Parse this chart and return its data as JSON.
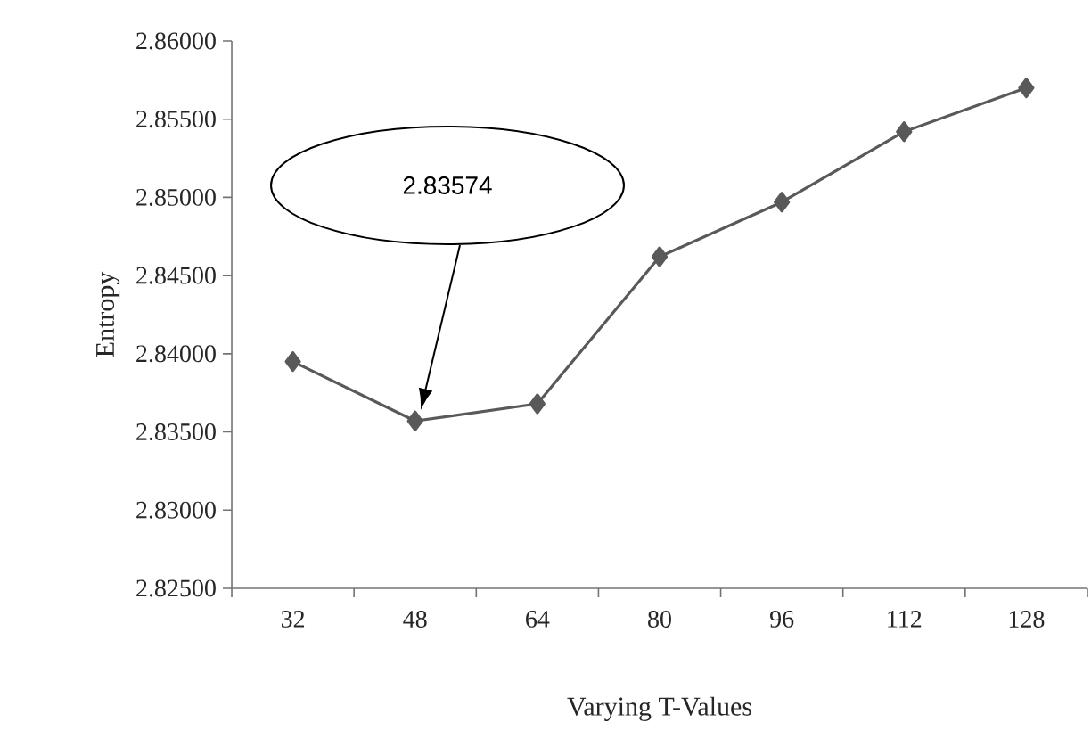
{
  "chart_data": {
    "type": "line",
    "xlabel": "Varying T-Values",
    "ylabel": "Entropy",
    "categories": [
      "32",
      "48",
      "64",
      "80",
      "96",
      "112",
      "128"
    ],
    "series": [
      {
        "color": "#595959",
        "values": [
          2.8395,
          2.8357,
          2.8368,
          2.8462,
          2.8497,
          2.8542,
          2.857
        ]
      }
    ],
    "ylim": [
      2.825,
      2.86
    ],
    "yticks": [
      {
        "value": 2.825,
        "label": "2.82500"
      },
      {
        "value": 2.83,
        "label": "2.83000"
      },
      {
        "value": 2.835,
        "label": "2.83500"
      },
      {
        "value": 2.84,
        "label": "2.84000"
      },
      {
        "value": 2.845,
        "label": "2.84500"
      },
      {
        "value": 2.85,
        "label": "2.85000"
      },
      {
        "value": 2.855,
        "label": "2.85500"
      },
      {
        "value": 2.86,
        "label": "2.86000"
      }
    ],
    "annotations": [
      "2.83574"
    ],
    "marker": "diamond",
    "line_style": "solid"
  }
}
